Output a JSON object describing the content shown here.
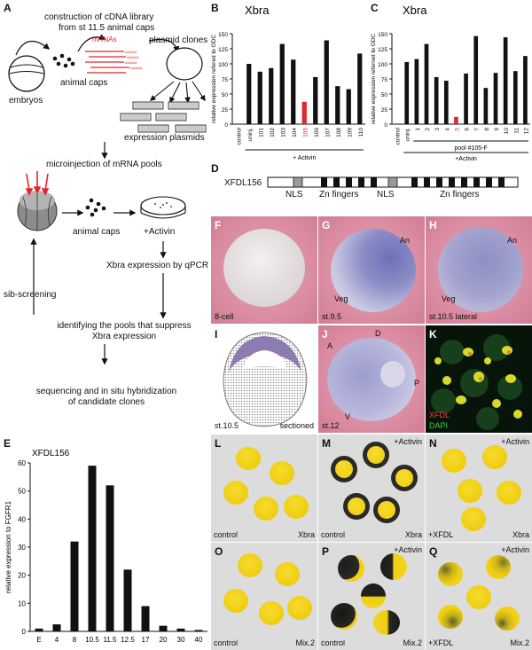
{
  "panel_letters": {
    "a": "A",
    "b": "B",
    "c": "C",
    "d": "D",
    "e": "E",
    "f": "F",
    "g": "G",
    "h": "H",
    "i": "I",
    "j": "J",
    "k": "K",
    "l": "L",
    "m": "M",
    "n": "N",
    "o": "O",
    "p": "P",
    "q": "Q"
  },
  "schematic": {
    "step1": "construction of cDNA library",
    "step1b": "from st 11.5 animal caps",
    "mrnas": "mRNAs",
    "plasmid_clones": "plasmid clones",
    "embryos": "embryos",
    "animal_caps": "animal caps",
    "expression_plasmids": "expression plasmids",
    "microinjection": "microinjection of mRNA pools",
    "animal_caps2": "animal caps",
    "activin": "+Activin",
    "qpcr": "Xbra expression by qPCR",
    "sib": "sib-screening",
    "identify1": "identifying the pools that suppress",
    "identify2": "Xbra expression",
    "seq1": "sequencing and in situ hybridization",
    "seq2": "of candidate clones"
  },
  "panel_d": {
    "gene": "XFDL156",
    "nls1": "NLS",
    "zn1": "Zn fingers",
    "nls2": "NLS",
    "zn2": "Zn fingers"
  },
  "photos": {
    "f": "8-cell",
    "g_an": "An",
    "g_veg": "Veg",
    "g_st": "st.9.5",
    "h_an": "An",
    "h_veg": "Veg",
    "h_st": "st.10.5 lateral",
    "i_st": "st.10.5",
    "i_sec": "sectioned",
    "j_a": "A",
    "j_d": "D",
    "j_p": "P",
    "j_v": "V",
    "j_st": "st.12",
    "k_red": "XFDL",
    "k_green": "DAPI",
    "l_l": "control",
    "l_r": "Xbra",
    "m_top": "+Activin",
    "m_l": "control",
    "m_r": "Xbra",
    "n_top": "+Activin",
    "n_l": "+XFDL",
    "n_r": "Xbra",
    "o_l": "control",
    "o_r": "Mix.2",
    "p_top": "+Activin",
    "p_l": "control",
    "p_r": "Mix.2",
    "q_top": "+Activin",
    "q_l": "+XFDL",
    "q_r": "Mix.2"
  },
  "chart_data": [
    {
      "id": "B",
      "type": "bar",
      "title": "Xbra",
      "ylabel": "relative expression refered to ODC",
      "ylim": [
        0,
        150
      ],
      "yticks": [
        0,
        25,
        50,
        75,
        100,
        125,
        150
      ],
      "categories": [
        "control",
        "uninj.",
        "101",
        "102",
        "103",
        "104",
        "105",
        "106",
        "107",
        "108",
        "109",
        "110"
      ],
      "values": [
        0,
        100,
        87,
        93,
        133,
        107,
        37,
        78,
        139,
        63,
        58,
        117
      ],
      "highlight_index": 6,
      "highlight_color": "#e3262b",
      "group_label": "+ Activin"
    },
    {
      "id": "C",
      "type": "bar",
      "title": "Xbra",
      "ylabel": "relative expression referred to ODC",
      "ylim": [
        0,
        150
      ],
      "yticks": [
        0,
        25,
        50,
        75,
        100,
        125,
        150
      ],
      "categories": [
        "control",
        "uninj.",
        "1",
        "2",
        "3",
        "4",
        "5",
        "6",
        "7",
        "8",
        "9",
        "10",
        "11",
        "12"
      ],
      "values": [
        0,
        103,
        108,
        133,
        78,
        72,
        12,
        84,
        146,
        60,
        85,
        144,
        88,
        113
      ],
      "highlight_index": 6,
      "highlight_color": "#e3262b",
      "group_label": "pool #105-F",
      "group_label2": "+Activin"
    },
    {
      "id": "E",
      "type": "bar",
      "title": "XFDL156",
      "ylabel": "relative expression to FGFR1",
      "ylim": [
        0,
        60
      ],
      "yticks": [
        0,
        10,
        20,
        30,
        40,
        50,
        60
      ],
      "categories": [
        "E",
        "4",
        "8",
        "10.5",
        "11.5",
        "12.5",
        "17",
        "20",
        "30",
        "40"
      ],
      "values": [
        1,
        2.5,
        32,
        59,
        52,
        22,
        9,
        2,
        1,
        0.5
      ]
    }
  ]
}
